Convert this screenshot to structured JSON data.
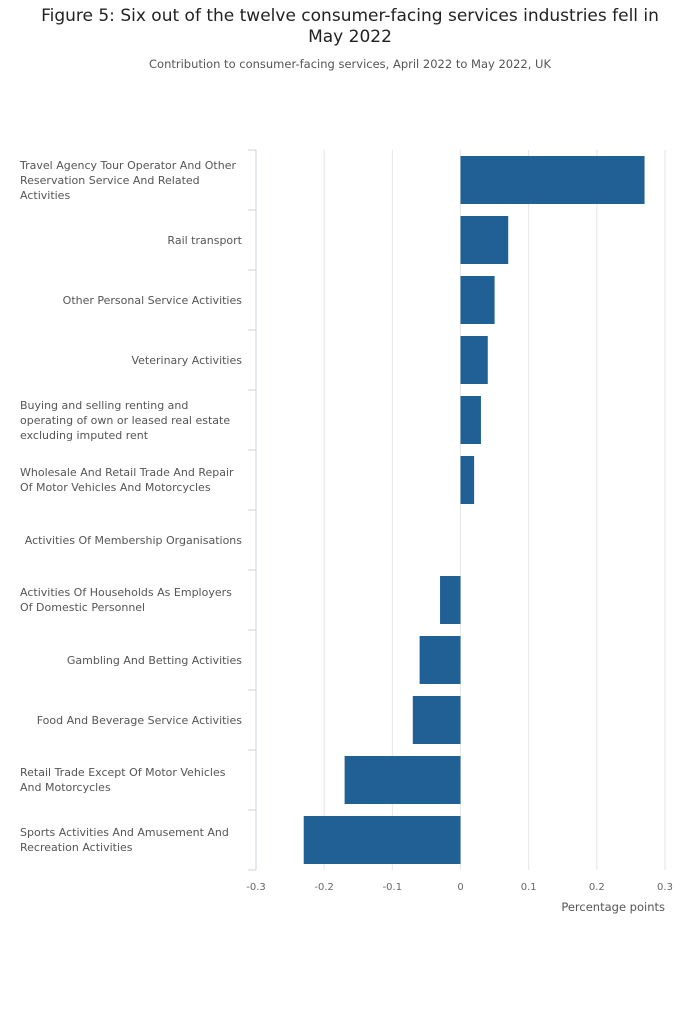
{
  "chart_data": {
    "type": "bar",
    "orientation": "horizontal",
    "title": "Figure 5: Six out of the twelve consumer-facing services industries fell in May 2022",
    "subtitle": "Contribution to consumer-facing services, April 2022 to May 2022, UK",
    "xlabel": "Percentage points",
    "ylabel": "",
    "xlim": [
      -0.3,
      0.3
    ],
    "xticks": [
      "-0.3",
      "-0.2",
      "-0.1",
      "0",
      "0.1",
      "0.2",
      "0.3"
    ],
    "xtick_values": [
      -0.3,
      -0.2,
      -0.1,
      0,
      0.1,
      0.2,
      0.3
    ],
    "grid": true,
    "categories": [
      "Travel Agency Tour Operator And Other Reservation Service And Related Activities",
      "Rail transport",
      "Other Personal Service Activities",
      "Veterinary Activities",
      "Buying and selling renting and operating of own or leased real estate excluding imputed rent",
      "Wholesale And Retail Trade And Repair Of Motor Vehicles And Motorcycles",
      "Activities Of Membership Organisations",
      "Activities Of Households As Employers Of Domestic Personnel",
      "Gambling And Betting Activities",
      "Food And Beverage Service Activities",
      "Retail Trade Except Of Motor Vehicles And Motorcycles",
      "Sports Activities And Amusement And Recreation Activities"
    ],
    "values": [
      0.27,
      0.07,
      0.05,
      0.04,
      0.03,
      0.02,
      0.0,
      -0.03,
      -0.06,
      -0.07,
      -0.17,
      -0.23
    ],
    "bar_color": "#206095"
  }
}
